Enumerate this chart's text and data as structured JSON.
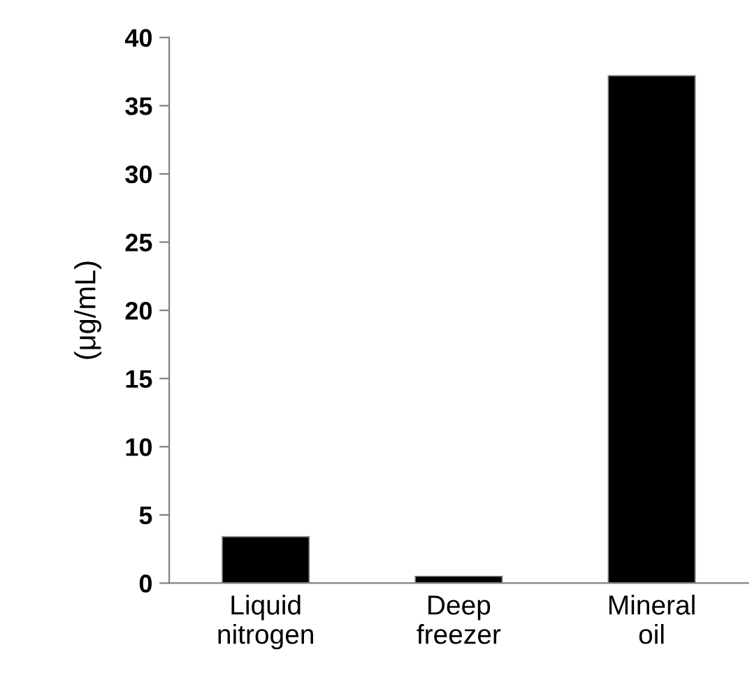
{
  "chart_data": {
    "type": "bar",
    "ylabel": "(μg/mL)",
    "categories": [
      "Liquid\nnitrogen",
      "Deep\nfreezer",
      "Mineral\noil"
    ],
    "values": [
      3.4,
      0.5,
      37.2
    ],
    "color": "#000000",
    "ylim": [
      0,
      40
    ],
    "yticks": [
      0,
      5,
      10,
      15,
      20,
      25,
      30,
      35,
      40
    ],
    "grid": false
  }
}
